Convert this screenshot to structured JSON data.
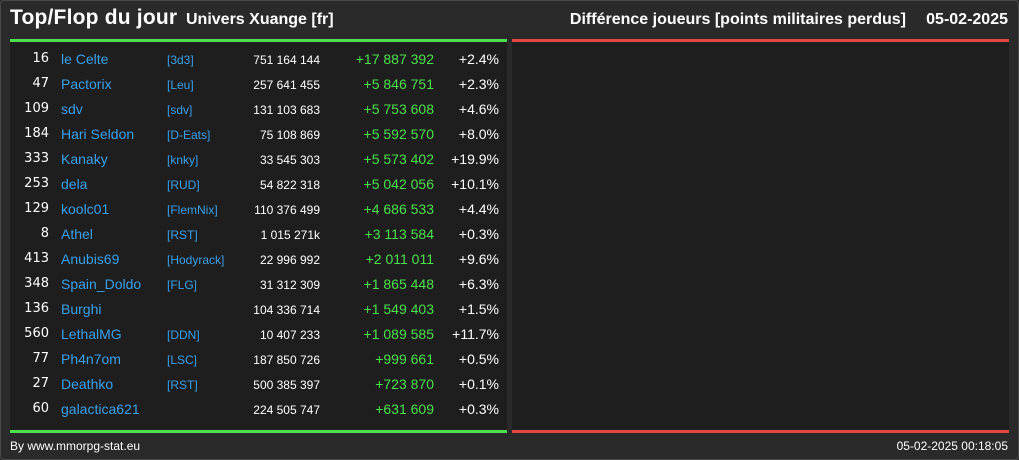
{
  "header": {
    "title": "Top/Flop du jour",
    "universe": "Univers Xuange [fr]",
    "metric": "Différence joueurs [points militaires perdus]",
    "date": "05-02-2025"
  },
  "colors": {
    "top_accent": "#4de04d",
    "flop_accent": "#e0483e",
    "name_link": "#3aa0e8",
    "positive_diff": "#4de04d"
  },
  "top_rows": [
    {
      "rank": "16",
      "name": "le Celte",
      "tag": "[3d3]",
      "points": "751 164 144",
      "diff": "+17 887 392",
      "pct": "+2.4%"
    },
    {
      "rank": "47",
      "name": "Pactorix",
      "tag": "[Leu]",
      "points": "257 641 455",
      "diff": "+5 846 751",
      "pct": "+2.3%"
    },
    {
      "rank": "109",
      "name": "sdv",
      "tag": "[sdv]",
      "points": "131 103 683",
      "diff": "+5 753 608",
      "pct": "+4.6%"
    },
    {
      "rank": "184",
      "name": "Hari Seldon",
      "tag": "[D-Eats]",
      "points": "75 108 869",
      "diff": "+5 592 570",
      "pct": "+8.0%"
    },
    {
      "rank": "333",
      "name": "Kanaky",
      "tag": "[knky]",
      "points": "33 545 303",
      "diff": "+5 573 402",
      "pct": "+19.9%"
    },
    {
      "rank": "253",
      "name": "dela",
      "tag": "[RUD]",
      "points": "54 822 318",
      "diff": "+5 042 056",
      "pct": "+10.1%"
    },
    {
      "rank": "129",
      "name": "koolc01",
      "tag": "[FlemNix]",
      "points": "110 376 499",
      "diff": "+4 686 533",
      "pct": "+4.4%"
    },
    {
      "rank": "8",
      "name": "Athel",
      "tag": "[RST]",
      "points": "1 015 271k",
      "diff": "+3 113 584",
      "pct": "+0.3%"
    },
    {
      "rank": "413",
      "name": "Anubis69",
      "tag": "[Hodyrack]",
      "points": "22 996 992",
      "diff": "+2 011 011",
      "pct": "+9.6%"
    },
    {
      "rank": "348",
      "name": "Spain_Doldo",
      "tag": "[FLG]",
      "points": "31 312 309",
      "diff": "+1 865 448",
      "pct": "+6.3%"
    },
    {
      "rank": "136",
      "name": "Burghi",
      "tag": "",
      "points": "104 336 714",
      "diff": "+1 549 403",
      "pct": "+1.5%"
    },
    {
      "rank": "560",
      "name": "LethalMG",
      "tag": "[DDN]",
      "points": "10 407 233",
      "diff": "+1 089 585",
      "pct": "+11.7%"
    },
    {
      "rank": "77",
      "name": "Ph4n7om",
      "tag": "[LSC]",
      "points": "187 850 726",
      "diff": "+999 661",
      "pct": "+0.5%"
    },
    {
      "rank": "27",
      "name": "Deathko",
      "tag": "[RST]",
      "points": "500 385 397",
      "diff": "+723 870",
      "pct": "+0.1%"
    },
    {
      "rank": "60",
      "name": "galactica621",
      "tag": "",
      "points": "224 505 747",
      "diff": "+631 609",
      "pct": "+0.3%"
    }
  ],
  "footer": {
    "source": "By www.mmorpg-stat.eu",
    "generated": "05-02-2025 00:18:05"
  }
}
